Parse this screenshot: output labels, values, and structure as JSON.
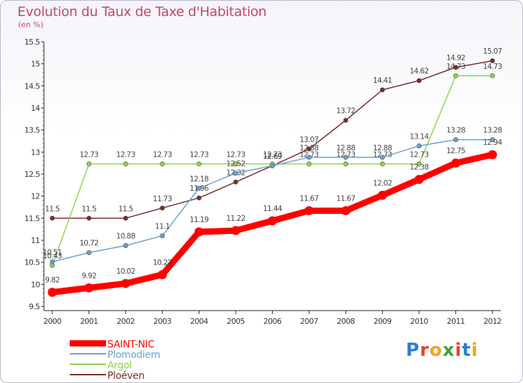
{
  "title": "Evolution du Taux de Taxe d'Habitation",
  "subtitle": "(en %)",
  "logo": "Proxiti",
  "chart_data": {
    "type": "line",
    "x": [
      "2000",
      "2001",
      "2002",
      "2003",
      "2004",
      "2005",
      "2006",
      "2007",
      "2008",
      "2009",
      "2010",
      "2011",
      "2012"
    ],
    "ylim": [
      9.5,
      15.5
    ],
    "yticks": [
      "9.5",
      "10",
      "10.5",
      "11",
      "11.5",
      "12",
      "12.5",
      "13",
      "13.5",
      "14",
      "14.5",
      "15",
      "15.5"
    ],
    "grid": false,
    "legend_position": "bottom-left",
    "series": [
      {
        "name": "SAINT-NIC",
        "color": "#ff0000",
        "width": 9,
        "values": [
          9.82,
          9.92,
          10.02,
          10.22,
          11.19,
          11.22,
          11.44,
          11.67,
          11.67,
          12.02,
          12.38,
          12.75,
          12.94
        ],
        "labels": [
          "9.82",
          "9.92",
          "10.02",
          "10.22",
          "11.19",
          "11.22",
          "11.44",
          "11.67",
          "11.67",
          "12.02",
          "12.38",
          "12.75",
          "12.94"
        ]
      },
      {
        "name": "Plomodiern",
        "color": "#6aa0cf",
        "width": 1.5,
        "values": [
          10.51,
          10.72,
          10.88,
          11.1,
          12.18,
          12.52,
          12.69,
          12.88,
          12.88,
          12.88,
          13.14,
          13.28,
          13.28
        ],
        "labels": [
          "10.51",
          "10.72",
          "10.88",
          "11.1",
          "12.18",
          "12.52",
          "12.69",
          "12.88",
          "12.88",
          "12.88",
          "13.14",
          "13.28",
          "13.28"
        ]
      },
      {
        "name": "Argol",
        "color": "#8ed44a",
        "width": 1.5,
        "values": [
          10.43,
          12.73,
          12.73,
          12.73,
          12.73,
          12.73,
          12.73,
          12.73,
          12.73,
          12.73,
          12.73,
          14.73,
          14.73
        ],
        "labels": [
          "10.43",
          "12.73",
          "12.73",
          "12.73",
          "12.73",
          "12.73",
          "12.73",
          "12.73",
          "12.73",
          "12.73",
          "12.73",
          "14.73",
          "14.73"
        ]
      },
      {
        "name": "Ploéven",
        "color": "#7a2a2a",
        "width": 1.5,
        "values": [
          11.5,
          11.5,
          11.5,
          11.73,
          11.96,
          12.32,
          12.69,
          13.07,
          13.72,
          14.41,
          14.62,
          14.92,
          15.07
        ],
        "labels": [
          "11.5",
          "11.5",
          "11.5",
          "11.73",
          "11.96",
          "12.32",
          "12.69",
          "13.07",
          "13.72",
          "14.41",
          "14.62",
          "14.92",
          "15.07"
        ]
      }
    ]
  }
}
